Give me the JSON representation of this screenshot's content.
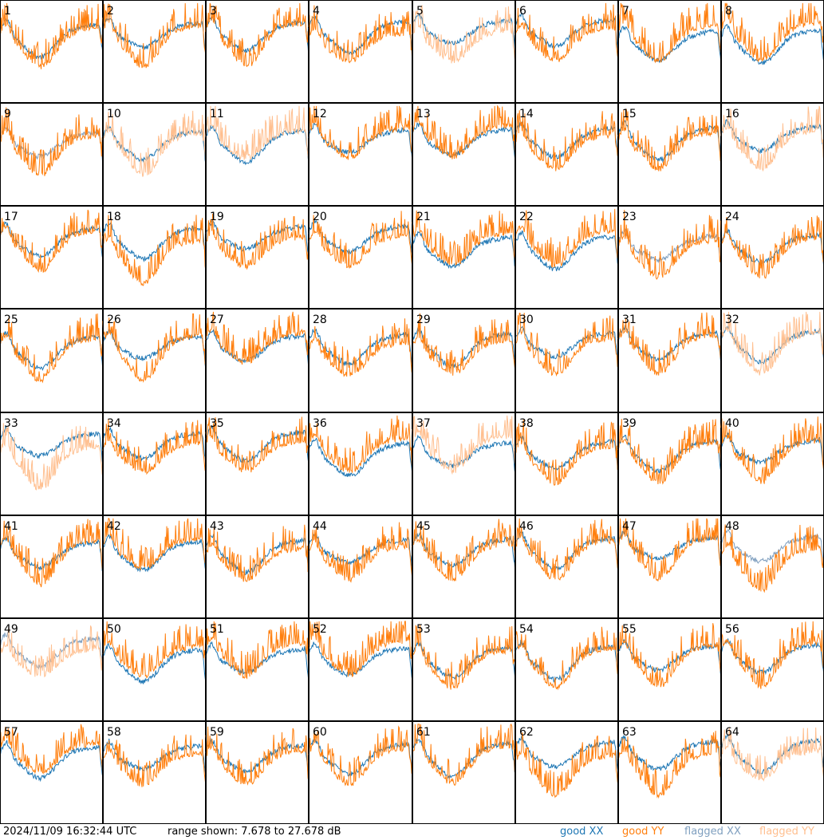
{
  "chart_data": {
    "type": "line",
    "grid_rows": 8,
    "grid_cols": 8,
    "tiles": [
      "1",
      "2",
      "3",
      "4",
      "5",
      "6",
      "7",
      "8",
      "9",
      "10",
      "11",
      "12",
      "13",
      "14",
      "15",
      "16",
      "17",
      "18",
      "19",
      "20",
      "21",
      "22",
      "23",
      "24",
      "25",
      "26",
      "27",
      "28",
      "29",
      "30",
      "31",
      "32",
      "33",
      "34",
      "35",
      "36",
      "37",
      "38",
      "39",
      "40",
      "41",
      "42",
      "43",
      "44",
      "45",
      "46",
      "47",
      "48",
      "49",
      "50",
      "51",
      "52",
      "53",
      "54",
      "55",
      "56",
      "57",
      "58",
      "59",
      "60",
      "61",
      "62",
      "63",
      "64"
    ],
    "ylim": [
      7.678,
      27.678
    ],
    "series_legend": [
      {
        "name": "good XX",
        "color": "#1f77b4"
      },
      {
        "name": "good YY",
        "color": "#ff7f0e"
      },
      {
        "name": "flagged XX",
        "color": "#7f9fbf"
      },
      {
        "name": "flagged YY",
        "color": "#ffbf8f"
      }
    ],
    "flag_states": {
      "5": "yy",
      "9": "xx",
      "10": "yy",
      "11": "yy",
      "16": "yy",
      "23": "xx",
      "32": "yy",
      "33": "yy",
      "37": "yy",
      "48": "xx",
      "49": "both",
      "64": "yy"
    }
  },
  "footer": {
    "timestamp": "2024/11/09 16:32:44 UTC",
    "range_text": "range shown: 7.678 to 27.678 dB",
    "legend_good_xx": "good XX",
    "legend_good_yy": "good YY",
    "legend_flagged_xx": "flagged XX",
    "legend_flagged_yy": "flagged YY"
  }
}
